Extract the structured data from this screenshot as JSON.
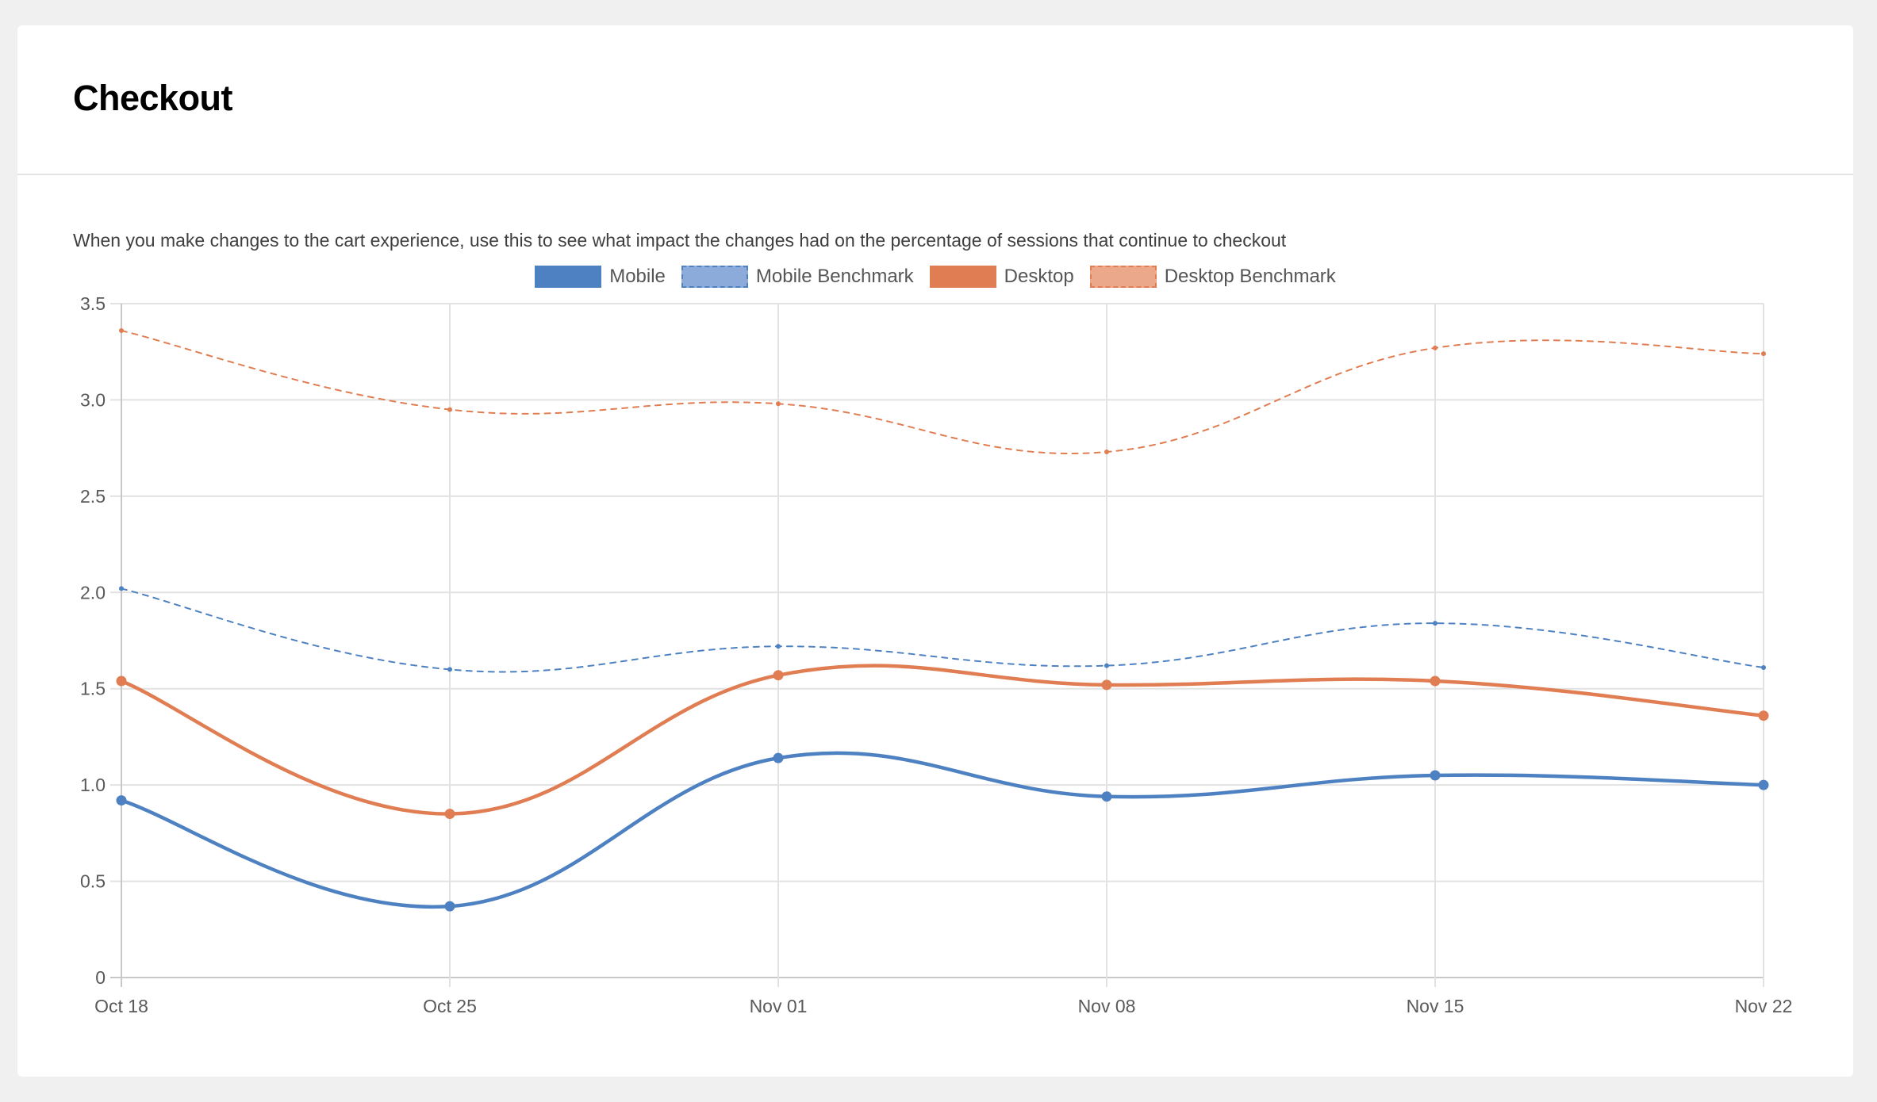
{
  "header": {
    "title": "Checkout"
  },
  "description": "When you make changes to the cart experience, use this to see what impact the changes had on the percentage of sessions that continue to checkout",
  "colors": {
    "mobile": "#4e81c1",
    "mobile_benchmark_fill": "#8cabda",
    "desktop": "#e17d52",
    "desktop_benchmark_fill": "#eca88a",
    "grid": "#e2e2e2",
    "axis": "#c8c8c8"
  },
  "legend": [
    {
      "label": "Mobile"
    },
    {
      "label": "Mobile Benchmark"
    },
    {
      "label": "Desktop"
    },
    {
      "label": "Desktop Benchmark"
    }
  ],
  "chart_data": {
    "type": "line",
    "title": "",
    "xlabel": "",
    "ylabel": "",
    "categories": [
      "Oct 18",
      "Oct 25",
      "Nov 01",
      "Nov 08",
      "Nov 15",
      "Nov 22"
    ],
    "ylim": [
      0,
      3.5
    ],
    "yticks": [
      "0",
      "0.5",
      "1.0",
      "1.5",
      "2.0",
      "2.5",
      "3.0",
      "3.5"
    ],
    "grid": true,
    "legend_position": "top",
    "series": [
      {
        "name": "Mobile",
        "style": "solid",
        "values": [
          0.92,
          0.37,
          1.14,
          0.94,
          1.05,
          1.0
        ]
      },
      {
        "name": "Mobile Benchmark",
        "style": "dashed",
        "values": [
          2.02,
          1.6,
          1.72,
          1.62,
          1.84,
          1.61
        ]
      },
      {
        "name": "Desktop",
        "style": "solid",
        "values": [
          1.54,
          0.85,
          1.57,
          1.52,
          1.54,
          1.36
        ]
      },
      {
        "name": "Desktop Benchmark",
        "style": "dashed",
        "values": [
          3.36,
          2.95,
          2.98,
          2.73,
          3.27,
          3.24
        ]
      }
    ]
  }
}
